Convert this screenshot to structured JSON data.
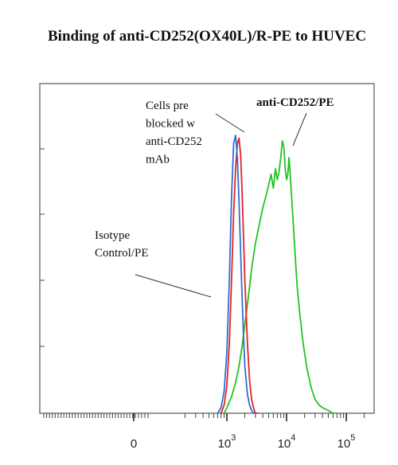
{
  "chart_data": {
    "type": "line",
    "title": "Binding of anti-CD252(OX40L)/R-PE to HUVEC",
    "xlabel": "",
    "ylabel": "",
    "x_scale": "biexponential",
    "tick_labels": [
      {
        "base": "0",
        "exp": ""
      },
      {
        "base": "10",
        "exp": "3"
      },
      {
        "base": "10",
        "exp": "4"
      },
      {
        "base": "10",
        "exp": "5"
      }
    ],
    "series": [
      {
        "color": "#2e6fd6",
        "label_lines": [
          "Isotype",
          "Control/PE"
        ],
        "x": [
          700,
          800,
          900,
          1000,
          1100,
          1200,
          1300,
          1400,
          1500,
          1600,
          1700,
          1800,
          1900,
          2000,
          2200,
          2400,
          2600,
          2800,
          3000
        ],
        "y": [
          0.0,
          0.02,
          0.08,
          0.22,
          0.48,
          0.78,
          0.97,
          1.0,
          0.92,
          0.76,
          0.58,
          0.42,
          0.28,
          0.17,
          0.07,
          0.03,
          0.01,
          0.0,
          0.0
        ]
      },
      {
        "color": "#e52222",
        "label_lines": [
          "Cells pre",
          "blocked w",
          "anti-CD252",
          "mAb"
        ],
        "x": [
          800,
          900,
          1000,
          1100,
          1200,
          1300,
          1400,
          1500,
          1600,
          1700,
          1800,
          1900,
          2000,
          2200,
          2400,
          2600,
          2800,
          3000,
          3300
        ],
        "y": [
          0.0,
          0.03,
          0.1,
          0.25,
          0.48,
          0.72,
          0.88,
          0.97,
          0.99,
          0.93,
          0.8,
          0.64,
          0.48,
          0.26,
          0.12,
          0.05,
          0.02,
          0.0,
          0.0
        ]
      },
      {
        "color": "#22c322",
        "label_lines": [
          "anti-CD252/PE"
        ],
        "x": [
          900,
          1000,
          1200,
          1400,
          1600,
          1800,
          2000,
          2300,
          2600,
          3000,
          3500,
          4000,
          4500,
          5000,
          5500,
          6000,
          6500,
          7000,
          7500,
          8000,
          8500,
          9000,
          9500,
          10000,
          10500,
          11000,
          11500,
          12000,
          13000,
          14000,
          15000,
          17000,
          19000,
          22000,
          26000,
          30000,
          35000,
          40000,
          50000,
          60000,
          70000
        ],
        "y": [
          0.0,
          0.02,
          0.06,
          0.11,
          0.17,
          0.24,
          0.32,
          0.42,
          0.52,
          0.61,
          0.68,
          0.74,
          0.78,
          0.82,
          0.86,
          0.81,
          0.88,
          0.84,
          0.87,
          0.92,
          0.98,
          0.96,
          0.88,
          0.84,
          0.86,
          0.92,
          0.86,
          0.8,
          0.68,
          0.56,
          0.46,
          0.34,
          0.25,
          0.16,
          0.09,
          0.05,
          0.03,
          0.02,
          0.01,
          0.0,
          0.0
        ]
      }
    ]
  }
}
